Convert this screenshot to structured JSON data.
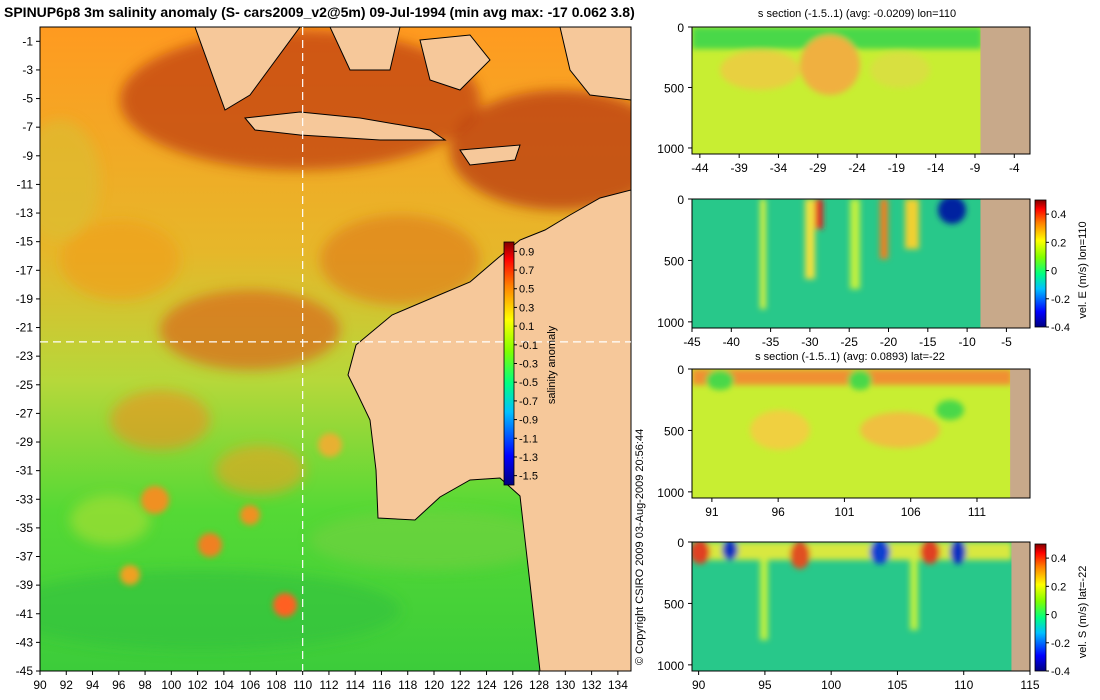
{
  "main": {
    "title": "SPINUP6p8 3m salinity anomaly (S- cars2009_v2@5m) 09-Jul-1994 (min avg max: -17 0.062 3.8)",
    "copyright": "© Copyright CSIRO 2009   03-Aug-2009 20:56:44"
  },
  "colors": {
    "land": "#f6c89a",
    "section_land": "#c8a98a",
    "crosshair": "#ffffff"
  },
  "chart_data": [
    {
      "id": "map",
      "type": "heatmap",
      "title": "SPINUP6p8 3m salinity anomaly (S- cars2009_v2@5m) 09-Jul-1994 (min avg max: -17 0.062 3.8)",
      "xlabel": "",
      "ylabel": "",
      "xlim": [
        90,
        135
      ],
      "ylim": [
        -45,
        0
      ],
      "xticks": [
        90,
        92,
        94,
        96,
        98,
        100,
        102,
        104,
        106,
        108,
        110,
        112,
        114,
        116,
        118,
        120,
        122,
        124,
        126,
        128,
        130,
        132,
        134
      ],
      "yticks": [
        -1,
        -3,
        -5,
        -7,
        -9,
        -11,
        -13,
        -15,
        -17,
        -19,
        -21,
        -23,
        -25,
        -27,
        -29,
        -31,
        -33,
        -35,
        -37,
        -39,
        -41,
        -43,
        -45
      ],
      "crosshair": {
        "lon": 110,
        "lat": -22
      },
      "colorbar": {
        "label": "salinity anomaly",
        "range": [
          -1.6,
          1.0
        ],
        "ticks": [
          "0.9",
          "0.7",
          "0.5",
          "0.3",
          "0.1",
          "-0.1",
          "-0.3",
          "-0.5",
          "-0.7",
          "-0.9",
          "-1.1",
          "-1.3",
          "-1.5"
        ]
      }
    },
    {
      "id": "sec-salt-lon",
      "type": "heatmap",
      "title": "s section (-1.5..1) (avg: -0.0209) lon=110",
      "xlim": [
        -45,
        -2
      ],
      "ylim": [
        1050,
        0
      ],
      "xticks": [
        -44,
        -39,
        -34,
        -29,
        -24,
        -19,
        -14,
        -9,
        -4
      ],
      "yticks": [
        0,
        500,
        1000
      ],
      "land_from": -8.3
    },
    {
      "id": "sec-vel-e",
      "type": "heatmap",
      "xlim": [
        -45,
        -2
      ],
      "ylim": [
        1050,
        0
      ],
      "xticks": [
        -45,
        -40,
        -35,
        -30,
        -25,
        -20,
        -15,
        -10,
        -5
      ],
      "yticks": [
        0,
        500,
        1000
      ],
      "land_from": -8.3,
      "colorbar": {
        "label": "vel. E (m/s) lon=110",
        "range": [
          -0.4,
          0.5
        ],
        "ticks": [
          "0.4",
          "0.2",
          "0",
          "-0.2",
          "-0.4"
        ]
      }
    },
    {
      "id": "sec-salt-lat",
      "type": "heatmap",
      "title": "s section (-1.5..1) (avg: 0.0893) lat=-22",
      "xlim": [
        89.5,
        115
      ],
      "ylim": [
        1050,
        0
      ],
      "xticks": [
        91,
        96,
        101,
        106,
        111
      ],
      "yticks": [
        0,
        500,
        1000
      ],
      "land_from": 113.5
    },
    {
      "id": "sec-vel-s",
      "type": "heatmap",
      "xlim": [
        89.5,
        115
      ],
      "ylim": [
        1050,
        0
      ],
      "xticks": [
        90,
        95,
        100,
        105,
        110,
        115
      ],
      "yticks": [
        0,
        500,
        1000
      ],
      "land_from": 113.6,
      "colorbar": {
        "label": "vel. S (m/s) lat=-22",
        "range": [
          -0.4,
          0.5
        ],
        "ticks": [
          "0.4",
          "0.2",
          "0",
          "-0.2",
          "-0.4"
        ]
      }
    }
  ]
}
